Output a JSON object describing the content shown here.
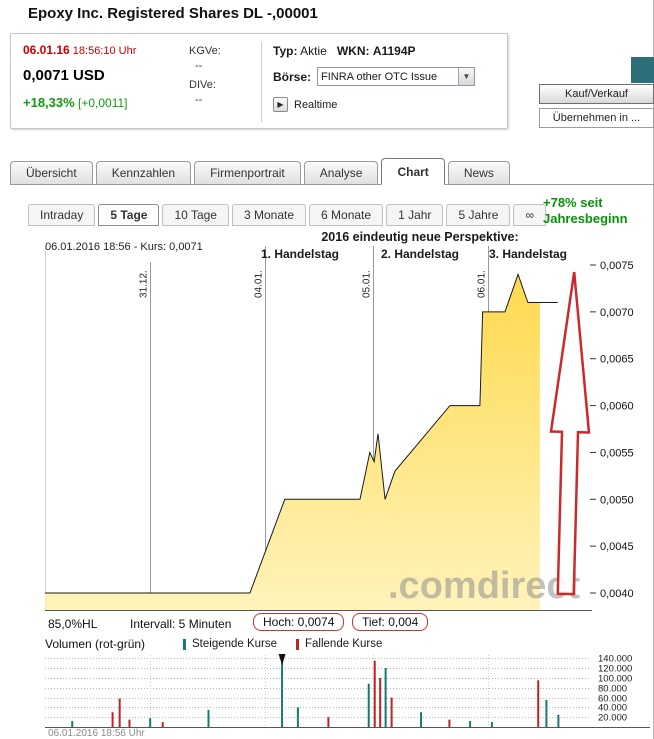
{
  "title": "Epoxy Inc. Registered Shares DL -,00001",
  "quote": {
    "date": "06.01.16",
    "time": "18:56:10 Uhr",
    "price": "0,0071 USD",
    "change_pct": "+18,33%",
    "change_abs": "[+0,0011]",
    "kgve_label": "KGVe:",
    "kgve_value": "--",
    "dive_label": "DIVe:",
    "dive_value": "--",
    "typ_label": "Typ:",
    "typ_value": "Aktie",
    "wkn_label": "WKN:",
    "wkn_value": "A1194P",
    "boerse_label": "Börse:",
    "boerse_selected": "FINRA other OTC Issue",
    "realtime_label": "Realtime"
  },
  "actions": {
    "buy_sell": "Kauf/Verkauf",
    "apply_to": "Übernehmen in ..."
  },
  "main_tabs": [
    {
      "label": "Übersicht",
      "active": false
    },
    {
      "label": "Kennzahlen",
      "active": false
    },
    {
      "label": "Firmenportrait",
      "active": false
    },
    {
      "label": "Analyse",
      "active": false
    },
    {
      "label": "Chart",
      "active": true
    },
    {
      "label": "News",
      "active": false
    }
  ],
  "range_tabs": [
    {
      "label": "Intraday",
      "active": false
    },
    {
      "label": "5 Tage",
      "active": true
    },
    {
      "label": "10 Tage",
      "active": false
    },
    {
      "label": "3 Monate",
      "active": false
    },
    {
      "label": "6 Monate",
      "active": false
    },
    {
      "label": "1 Jahr",
      "active": false
    },
    {
      "label": "5 Jahre",
      "active": false
    },
    {
      "label": "∞",
      "active": false
    }
  ],
  "ytd": {
    "line1": "+78% seit",
    "line2": "Jahresbeginn"
  },
  "annotation": {
    "title": "2016 eindeutig neue Perspektive:",
    "days": [
      "1. Handelstag",
      "2. Handelstag",
      "3. Handelstag"
    ]
  },
  "chart_info": "06.01.2016 18:56 - Kurs: 0,0071",
  "chart_footer": {
    "hl": "85,0%HL",
    "interval": "Intervall: 5 Minuten",
    "high_badge": "Hoch: 0,0074",
    "low_badge": "Tief: 0,004"
  },
  "volume_header": {
    "label": "Volumen (rot-grün)",
    "legend_up": "Steigende Kurse",
    "legend_down": "Fallende Kurse",
    "timestamp": "06.01.2016 18:56 Uhr"
  },
  "chart_data": {
    "type": "area",
    "x_axis": {
      "dates": [
        {
          "label": "31.12.",
          "pos": 0.193
        },
        {
          "label": "04.01.",
          "pos": 0.404
        },
        {
          "label": "05.01.",
          "pos": 0.602
        },
        {
          "label": "06.01.",
          "pos": 0.813
        }
      ]
    },
    "y_axis": {
      "ticks": [
        0.0075,
        0.007,
        0.0065,
        0.006,
        0.0055,
        0.005,
        0.0045,
        0.004
      ],
      "tick_labels": [
        "0,0075",
        "0,0070",
        "0,0065",
        "0,0060",
        "0,0055",
        "0,0050",
        "0,0045",
        "0,0040"
      ],
      "min": 0.00383,
      "max": 0.00757
    },
    "price_series": [
      [
        0.0,
        0.004
      ],
      [
        0.376,
        0.004
      ],
      [
        0.44,
        0.005
      ],
      [
        0.578,
        0.005
      ],
      [
        0.596,
        0.0055
      ],
      [
        0.604,
        0.0054
      ],
      [
        0.611,
        0.0057
      ],
      [
        0.624,
        0.005
      ],
      [
        0.642,
        0.0053
      ],
      [
        0.743,
        0.006
      ],
      [
        0.798,
        0.006
      ],
      [
        0.803,
        0.007
      ],
      [
        0.844,
        0.007
      ],
      [
        0.868,
        0.0074
      ],
      [
        0.886,
        0.0071
      ],
      [
        0.941,
        0.0071
      ]
    ],
    "fill_end": 0.908,
    "high": 0.0074,
    "low": 0.004,
    "last": 0.0071,
    "interval": "5 Minuten",
    "watermark": ".comdirect",
    "area_color_top": "#ffd94e",
    "area_color_bottom": "#fff3bb",
    "arrow_color": "#cc2a2a",
    "volume": {
      "ticks": [
        140000,
        120000,
        100000,
        80000,
        60000,
        40000,
        20000
      ],
      "tick_labels": [
        "140.000",
        "120.000",
        "100.000",
        "80.000",
        "60.000",
        "40.000",
        "20.000"
      ],
      "up_color": "#167a70",
      "down_color": "#c22222",
      "marker_pos": 0.435,
      "bars": [
        {
          "pos": 0.05,
          "value": 12000,
          "dir": "up"
        },
        {
          "pos": 0.124,
          "value": 30000,
          "dir": "down"
        },
        {
          "pos": 0.137,
          "value": 58000,
          "dir": "down"
        },
        {
          "pos": 0.155,
          "value": 15000,
          "dir": "down"
        },
        {
          "pos": 0.193,
          "value": 18000,
          "dir": "up"
        },
        {
          "pos": 0.216,
          "value": 10000,
          "dir": "down"
        },
        {
          "pos": 0.3,
          "value": 35000,
          "dir": "up"
        },
        {
          "pos": 0.435,
          "value": 140000,
          "dir": "up"
        },
        {
          "pos": 0.464,
          "value": 40000,
          "dir": "up"
        },
        {
          "pos": 0.52,
          "value": 20000,
          "dir": "down"
        },
        {
          "pos": 0.594,
          "value": 88000,
          "dir": "up"
        },
        {
          "pos": 0.605,
          "value": 135000,
          "dir": "down"
        },
        {
          "pos": 0.615,
          "value": 100000,
          "dir": "down"
        },
        {
          "pos": 0.625,
          "value": 120000,
          "dir": "up"
        },
        {
          "pos": 0.636,
          "value": 60000,
          "dir": "down"
        },
        {
          "pos": 0.69,
          "value": 30000,
          "dir": "up"
        },
        {
          "pos": 0.742,
          "value": 15000,
          "dir": "down"
        },
        {
          "pos": 0.78,
          "value": 12000,
          "dir": "up"
        },
        {
          "pos": 0.82,
          "value": 10000,
          "dir": "up"
        },
        {
          "pos": 0.905,
          "value": 95000,
          "dir": "down"
        },
        {
          "pos": 0.92,
          "value": 55000,
          "dir": "up"
        },
        {
          "pos": 0.942,
          "value": 25000,
          "dir": "up"
        }
      ]
    }
  }
}
